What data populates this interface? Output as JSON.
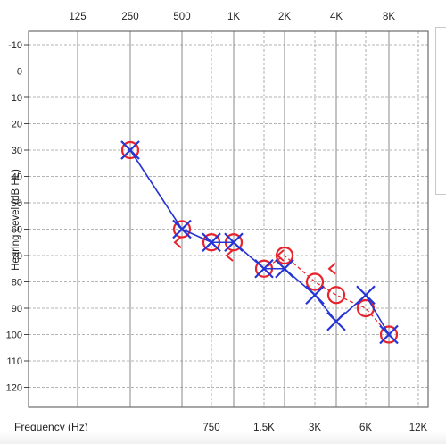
{
  "chart_data": {
    "type": "scatter",
    "title": "",
    "ylabel": "Hearing Level (dB HL)",
    "xlabel": "Frequency (Hz)",
    "y_ticks": [
      -10,
      0,
      10,
      20,
      30,
      40,
      50,
      60,
      70,
      80,
      90,
      100,
      110,
      120
    ],
    "ylim": [
      -10,
      120
    ],
    "y_inverted": true,
    "octave_ticks": [
      "125",
      "250",
      "500",
      "1K",
      "2K",
      "4K",
      "8K"
    ],
    "interoctave_ticks": [
      "750",
      "1.5K",
      "3K",
      "6K",
      "12K"
    ],
    "grid": true,
    "series": [
      {
        "name": "",
        "symbol": "O",
        "color": "#e8232b",
        "points": [
          {
            "x": "250",
            "y": 30
          },
          {
            "x": "500",
            "y": 60
          },
          {
            "x": "750",
            "y": 65
          },
          {
            "x": "1K",
            "y": 65
          },
          {
            "x": "1.5K",
            "y": 75
          },
          {
            "x": "2K",
            "y": 70
          },
          {
            "x": "3K",
            "y": 80
          },
          {
            "x": "4K",
            "y": 85
          },
          {
            "x": "6K",
            "y": 90
          },
          {
            "x": "8K",
            "y": 100
          }
        ]
      },
      {
        "name": "",
        "symbol": "X",
        "color": "#2434d6",
        "points": [
          {
            "x": "250",
            "y": 30
          },
          {
            "x": "500",
            "y": 60
          },
          {
            "x": "750",
            "y": 65
          },
          {
            "x": "1K",
            "y": 65
          },
          {
            "x": "1.5K",
            "y": 75
          },
          {
            "x": "2K",
            "y": 75
          },
          {
            "x": "3K",
            "y": 85
          },
          {
            "x": "4K",
            "y": 95
          },
          {
            "x": "6K",
            "y": 85
          },
          {
            "x": "8K",
            "y": 100
          }
        ]
      }
    ],
    "bone_conduction": {
      "symbol": "<",
      "color": "#e8232b",
      "points": [
        {
          "x": "500",
          "y": 65
        },
        {
          "x": "1K",
          "y": 70
        },
        {
          "x": "2K",
          "y": 70
        },
        {
          "x": "4K",
          "y": 75
        }
      ]
    }
  }
}
